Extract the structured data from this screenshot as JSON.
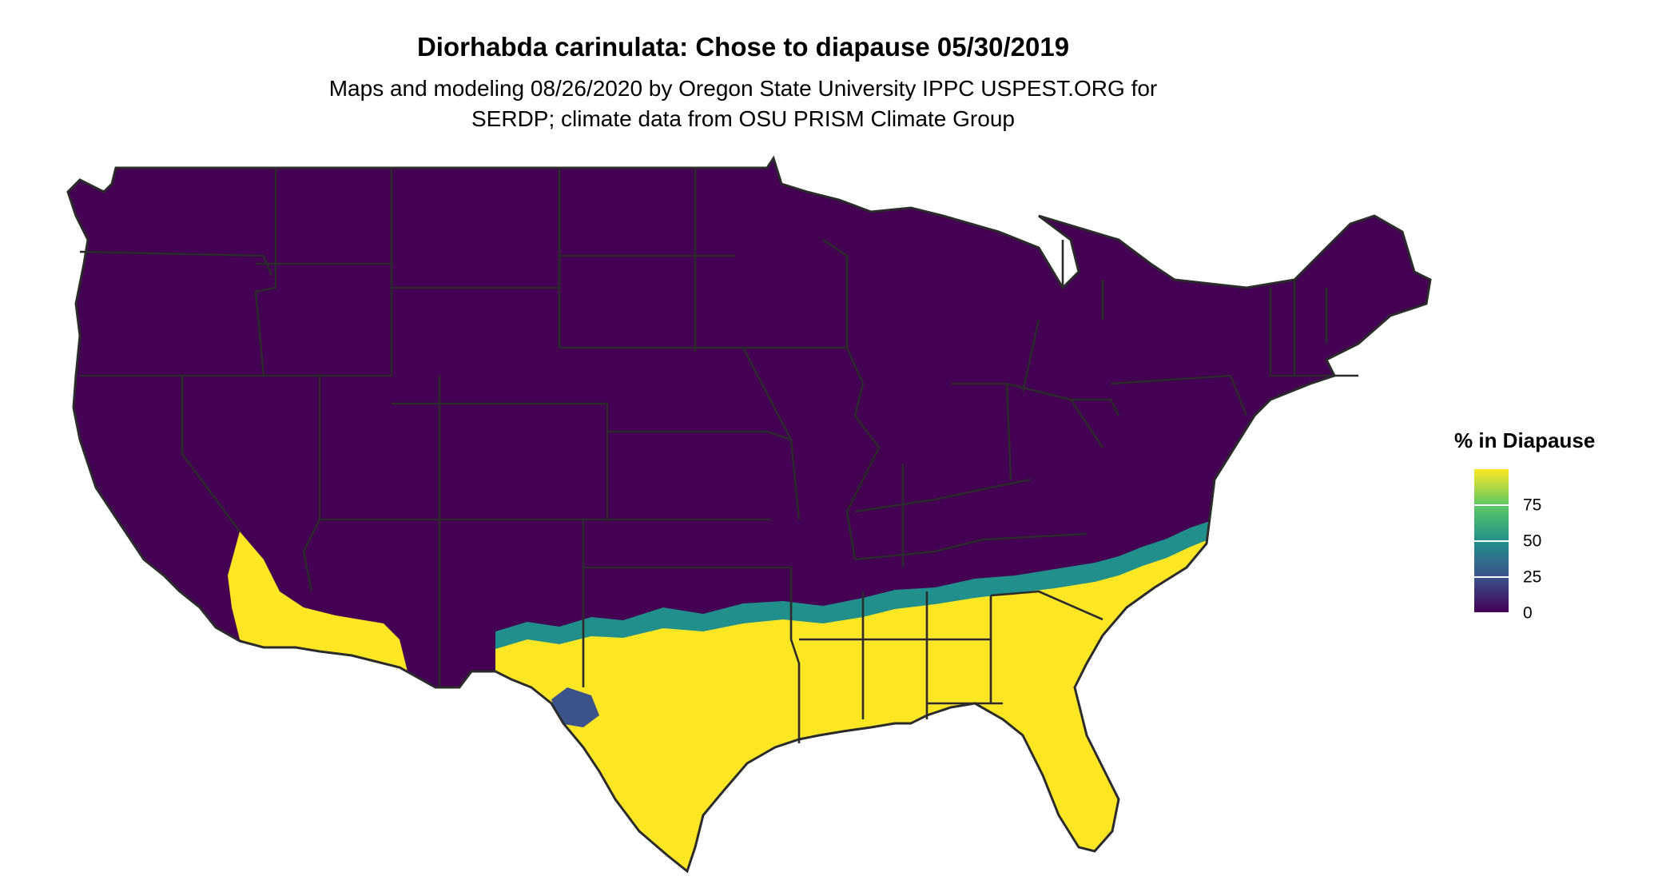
{
  "title": "Diorhabda carinulata: Chose to diapause 05/30/2019",
  "subtitle_lines": [
    "Maps and modeling 08/26/2020 by Oregon State University IPPC USPEST.ORG for",
    "SERDP; climate data from OSU PRISM Climate Group"
  ],
  "legend": {
    "title": "% in Diapause",
    "min": 0,
    "max": 100,
    "ticks": [
      {
        "label": "75",
        "value": 75
      },
      {
        "label": "50",
        "value": 50
      },
      {
        "label": "25",
        "value": 25
      },
      {
        "label": "0",
        "value": 0
      }
    ]
  },
  "colors": {
    "low": "#440154",
    "mid_low": "#3b528b",
    "mid": "#21908c",
    "mid_high": "#5dc863",
    "high": "#fde725",
    "border": "#2b2b2b"
  }
}
